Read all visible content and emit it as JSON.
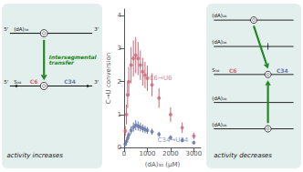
{
  "chart_data": {
    "type": "scatter",
    "xlabel": "(dA)₃₀ (μM)",
    "ylabel": "C→U conversion",
    "xlim": [
      0,
      3300
    ],
    "ylim": [
      0,
      4.2
    ],
    "xticks": [
      0,
      1000,
      2000,
      3000
    ],
    "yticks": [
      0,
      1,
      2,
      3,
      4
    ],
    "grid": false,
    "series": [
      {
        "color": "#cc6677",
        "x": [
          50,
          100,
          150,
          200,
          300,
          400,
          500,
          600,
          700,
          800,
          900,
          1000,
          1200,
          1500,
          2000,
          2500,
          3000
        ],
        "values": [
          0.5,
          1.0,
          1.6,
          2.0,
          2.5,
          2.7,
          2.8,
          2.7,
          2.5,
          2.3,
          2.2,
          2.1,
          1.9,
          1.5,
          1.0,
          0.6,
          0.35
        ],
        "yerr": [
          0.15,
          0.3,
          0.4,
          0.45,
          0.55,
          0.55,
          0.55,
          0.5,
          0.45,
          0.42,
          0.4,
          0.38,
          0.35,
          0.3,
          0.22,
          0.16,
          0.1
        ]
      },
      {
        "color": "#6677aa",
        "x": [
          50,
          100,
          150,
          200,
          300,
          400,
          500,
          600,
          700,
          800,
          900,
          1000,
          1200,
          1500,
          2000,
          2500,
          3000
        ],
        "values": [
          0.1,
          0.18,
          0.28,
          0.38,
          0.52,
          0.62,
          0.68,
          0.65,
          0.62,
          0.58,
          0.55,
          0.52,
          0.48,
          0.4,
          0.3,
          0.22,
          0.15
        ],
        "yerr": [
          0.05,
          0.07,
          0.09,
          0.1,
          0.12,
          0.14,
          0.15,
          0.14,
          0.13,
          0.12,
          0.11,
          0.1,
          0.09,
          0.08,
          0.07,
          0.06,
          0.05
        ]
      }
    ],
    "annotations": [
      {
        "text": "C6→U6",
        "x": 1050,
        "y": 2.1,
        "color": "#cc6677"
      },
      {
        "text": "C34→U34",
        "x": 1400,
        "y": 0.22,
        "color": "#6677aa"
      }
    ],
    "diagrams": [
      {
        "color": "#228822",
        "arrow_text": "Intersegmental transfer",
        "caption": "activity increases",
        "strand_ends": [
          "5'",
          "3'"
        ],
        "strands": [
          {
            "label": "(dA)₃₈"
          },
          {
            "label": "S₃₈",
            "sites": [
              {
                "text": "C6",
                "color": "#cc6677"
              },
              {
                "text": "C34",
                "color": "#6677aa"
              }
            ]
          }
        ]
      },
      {
        "color": "#228822",
        "caption": "activity decreases",
        "strands": [
          {
            "label": "(dA)₃₈"
          },
          {
            "label": "(dA)₃₈"
          },
          {
            "label": "S₃₈",
            "sites": [
              {
                "text": "C6",
                "color": "#cc6677"
              },
              {
                "text": "C34",
                "color": "#6677aa"
              }
            ]
          },
          {
            "label": "(dA)₃₈"
          },
          {
            "label": "(dA)₃₈"
          }
        ]
      }
    ]
  }
}
